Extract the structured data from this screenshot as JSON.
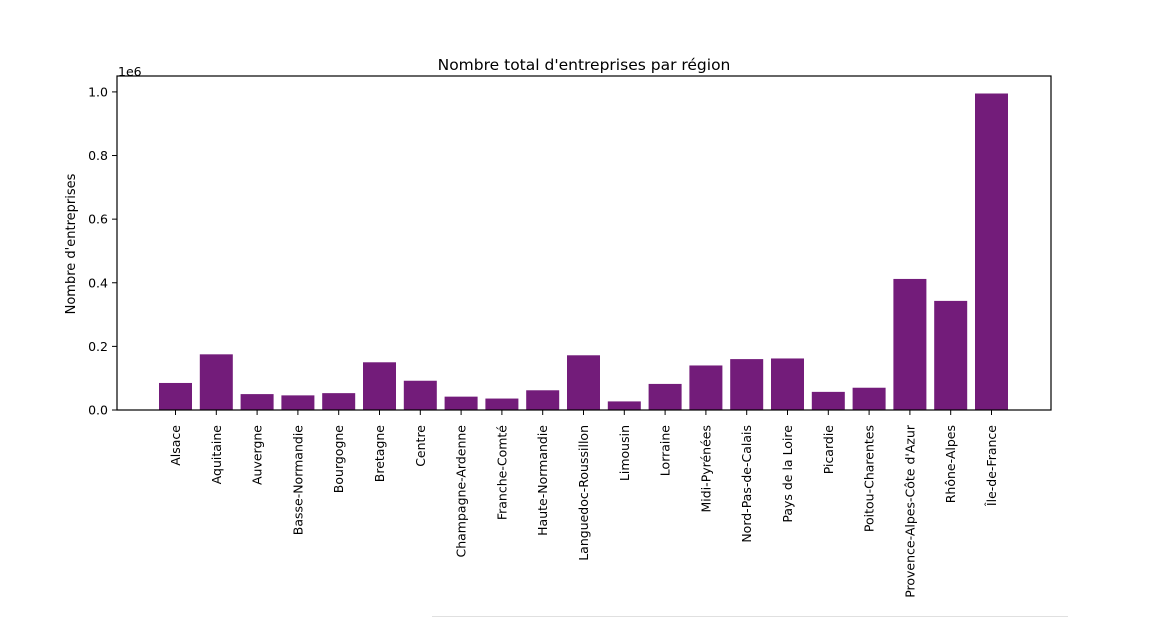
{
  "chart_data": {
    "type": "bar",
    "title": "Nombre total d'entreprises par région",
    "xlabel": "",
    "ylabel": "Nombre d'entreprises",
    "y_offset_label": "1e6",
    "ylim": [
      0,
      1.05
    ],
    "yticks": [
      0.0,
      0.2,
      0.4,
      0.6,
      0.8,
      1.0
    ],
    "ytick_labels": [
      "0.0",
      "0.2",
      "0.4",
      "0.6",
      "0.8",
      "1.0"
    ],
    "grid": false,
    "bar_color": "#731c7a",
    "categories": [
      "Alsace",
      "Aquitaine",
      "Auvergne",
      "Basse-Normandie",
      "Bourgogne",
      "Bretagne",
      "Centre",
      "Champagne-Ardenne",
      "Franche-Comté",
      "Haute-Normandie",
      "Languedoc-Roussillon",
      "Limousin",
      "Lorraine",
      "Midi-Pyrénées",
      "Nord-Pas-de-Calais",
      "Pays de la Loire",
      "Picardie",
      "Poitou-Charentes",
      "Provence-Alpes-Côte d'Azur",
      "Rhône-Alpes",
      "Île-de-France"
    ],
    "values": [
      0.085,
      0.175,
      0.05,
      0.046,
      0.053,
      0.15,
      0.092,
      0.042,
      0.036,
      0.062,
      0.172,
      0.027,
      0.082,
      0.14,
      0.16,
      0.162,
      0.057,
      0.07,
      0.412,
      0.343,
      0.995
    ]
  }
}
